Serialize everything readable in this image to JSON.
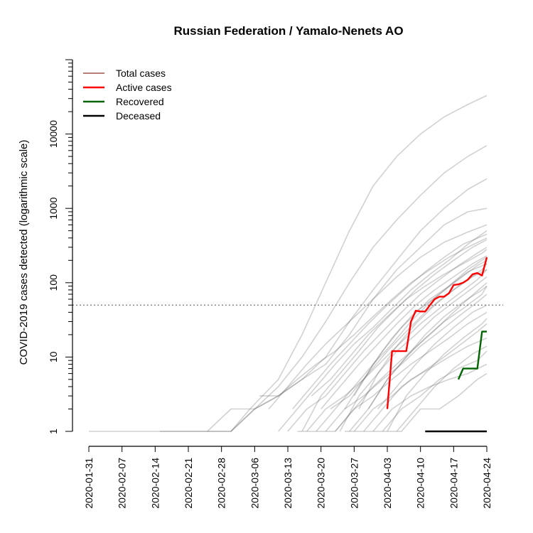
{
  "chart_data": {
    "type": "line",
    "title": "Russian Federation / Yamalo-Nenets AO",
    "ylabel": "COVID-2019 cases detected (logarithmic scale)",
    "xlabel": "",
    "y_scale": "log",
    "ylim": [
      1,
      100000
    ],
    "xlim": [
      "2020-01-31",
      "2020-04-24"
    ],
    "x_ticks": [
      "2020-01-31",
      "2020-02-07",
      "2020-02-14",
      "2020-02-21",
      "2020-02-28",
      "2020-03-06",
      "2020-03-13",
      "2020-03-20",
      "2020-03-27",
      "2020-04-03",
      "2020-04-10",
      "2020-04-17",
      "2020-04-24"
    ],
    "y_ticks": [
      1,
      10,
      100,
      1000,
      10000
    ],
    "y_tick_labels": [
      "1",
      "10",
      "100",
      "1000",
      "10000"
    ],
    "reference_line": 50,
    "grid": false,
    "legend_position": "top-left",
    "legend": [
      {
        "label": "Total cases",
        "color": "#a0524d"
      },
      {
        "label": "Active cases",
        "color": "#ff0000"
      },
      {
        "label": "Recovered",
        "color": "#006400"
      },
      {
        "label": "Deceased",
        "color": "#000000"
      }
    ],
    "series": [
      {
        "name": "Active cases",
        "color": "#ff0000",
        "x": [
          "2020-04-03",
          "2020-04-04",
          "2020-04-05",
          "2020-04-06",
          "2020-04-07",
          "2020-04-08",
          "2020-04-09",
          "2020-04-10",
          "2020-04-11",
          "2020-04-12",
          "2020-04-13",
          "2020-04-14",
          "2020-04-15",
          "2020-04-16",
          "2020-04-17",
          "2020-04-18",
          "2020-04-19",
          "2020-04-20",
          "2020-04-21",
          "2020-04-22",
          "2020-04-23",
          "2020-04-24"
        ],
        "y": [
          2,
          12,
          12,
          12,
          12,
          30,
          42,
          41,
          41,
          50,
          60,
          65,
          65,
          72,
          93,
          95,
          100,
          110,
          130,
          135,
          125,
          220
        ]
      },
      {
        "name": "Recovered",
        "color": "#006400",
        "x": [
          "2020-04-18",
          "2020-04-19",
          "2020-04-20",
          "2020-04-21",
          "2020-04-22",
          "2020-04-23",
          "2020-04-24"
        ],
        "y": [
          5,
          7,
          7,
          7,
          7,
          22,
          22
        ]
      },
      {
        "name": "Deceased",
        "color": "#000000",
        "x": [
          "2020-04-11",
          "2020-04-24"
        ],
        "y": [
          1,
          1
        ]
      }
    ],
    "background_series": [
      {
        "x": [
          0,
          5,
          10,
          20,
          25,
          30,
          34,
          40,
          45,
          50,
          55,
          60,
          65,
          70,
          75,
          80,
          84
        ],
        "y": [
          1,
          1,
          1,
          1,
          1,
          1,
          2,
          5,
          20,
          100,
          500,
          2000,
          5000,
          10000,
          17000,
          25000,
          33000
        ]
      },
      {
        "x": [
          15,
          20,
          25,
          30,
          35,
          40,
          45,
          50,
          55,
          60,
          65,
          70,
          75,
          80,
          84
        ],
        "y": [
          1,
          1,
          1,
          1,
          2,
          4,
          10,
          30,
          100,
          300,
          700,
          1500,
          3000,
          5000,
          7000
        ]
      },
      {
        "x": [
          30,
          35,
          40,
          45,
          50,
          55,
          60,
          65,
          70,
          75,
          80,
          84
        ],
        "y": [
          1,
          2,
          3,
          5,
          10,
          30,
          80,
          200,
          500,
          1000,
          1800,
          2500
        ]
      },
      {
        "x": [
          25,
          30,
          35,
          40,
          45,
          50,
          55,
          60,
          65,
          70,
          75,
          80,
          84
        ],
        "y": [
          1,
          2,
          2,
          3,
          5,
          8,
          20,
          60,
          150,
          300,
          600,
          900,
          1000
        ]
      },
      {
        "x": [
          38,
          42,
          46,
          50,
          55,
          60,
          65,
          70,
          75,
          80,
          84
        ],
        "y": [
          2,
          4,
          8,
          15,
          30,
          60,
          120,
          220,
          350,
          480,
          600
        ]
      },
      {
        "x": [
          40,
          44,
          48,
          52,
          56,
          60,
          64,
          68,
          72,
          76,
          80,
          84
        ],
        "y": [
          1,
          2,
          4,
          8,
          15,
          25,
          45,
          80,
          130,
          200,
          330,
          500
        ]
      },
      {
        "x": [
          42,
          46,
          50,
          54,
          58,
          62,
          66,
          70,
          74,
          78,
          82,
          84
        ],
        "y": [
          1,
          2,
          3,
          6,
          12,
          22,
          40,
          70,
          110,
          170,
          250,
          300
        ]
      },
      {
        "x": [
          44,
          48,
          52,
          56,
          60,
          64,
          68,
          72,
          76,
          80,
          84
        ],
        "y": [
          1,
          1,
          2,
          4,
          8,
          15,
          30,
          55,
          90,
          150,
          220
        ]
      },
      {
        "x": [
          46,
          50,
          54,
          58,
          62,
          66,
          70,
          74,
          78,
          82,
          84
        ],
        "y": [
          1,
          2,
          3,
          5,
          9,
          16,
          28,
          45,
          70,
          110,
          150
        ]
      },
      {
        "x": [
          48,
          52,
          56,
          60,
          64,
          68,
          72,
          76,
          80,
          84
        ],
        "y": [
          1,
          1,
          2,
          4,
          7,
          12,
          20,
          35,
          60,
          100
        ]
      },
      {
        "x": [
          50,
          54,
          58,
          62,
          66,
          70,
          74,
          78,
          82,
          84
        ],
        "y": [
          1,
          2,
          3,
          5,
          8,
          14,
          22,
          35,
          55,
          70
        ]
      },
      {
        "x": [
          52,
          56,
          60,
          64,
          68,
          72,
          76,
          80,
          84
        ],
        "y": [
          1,
          2,
          3,
          5,
          8,
          12,
          18,
          28,
          40
        ]
      },
      {
        "x": [
          54,
          58,
          62,
          66,
          70,
          74,
          78,
          82,
          84
        ],
        "y": [
          1,
          1,
          2,
          4,
          6,
          9,
          14,
          22,
          28
        ]
      },
      {
        "x": [
          56,
          60,
          64,
          68,
          72,
          76,
          80,
          84
        ],
        "y": [
          1,
          2,
          3,
          5,
          7,
          10,
          14,
          18
        ]
      },
      {
        "x": [
          58,
          62,
          66,
          70,
          74,
          78,
          82,
          84
        ],
        "y": [
          1,
          1,
          2,
          3,
          5,
          7,
          9,
          12
        ]
      },
      {
        "x": [
          60,
          64,
          68,
          72,
          76,
          80,
          84
        ],
        "y": [
          1,
          2,
          3,
          4,
          5,
          6,
          8
        ]
      },
      {
        "x": [
          62,
          66,
          70,
          74,
          78,
          82,
          84
        ],
        "y": [
          1,
          1,
          2,
          2,
          3,
          5,
          6
        ]
      },
      {
        "x": [
          47,
          51,
          55,
          59,
          63,
          67,
          71,
          75,
          79,
          83,
          84
        ],
        "y": [
          3,
          5,
          10,
          20,
          35,
          60,
          90,
          130,
          180,
          250,
          280
        ]
      },
      {
        "x": [
          49,
          53,
          57,
          61,
          65,
          69,
          73,
          77,
          81,
          84
        ],
        "y": [
          2,
          4,
          8,
          15,
          28,
          50,
          80,
          120,
          180,
          230
        ]
      },
      {
        "x": [
          51,
          55,
          59,
          63,
          67,
          71,
          75,
          79,
          83,
          84
        ],
        "y": [
          2,
          3,
          6,
          12,
          22,
          40,
          65,
          100,
          150,
          180
        ]
      },
      {
        "x": [
          53,
          57,
          61,
          65,
          69,
          73,
          77,
          81,
          84
        ],
        "y": [
          1,
          3,
          6,
          12,
          20,
          35,
          55,
          85,
          120
        ]
      },
      {
        "x": [
          55,
          59,
          63,
          67,
          71,
          75,
          79,
          83,
          84
        ],
        "y": [
          1,
          2,
          5,
          10,
          18,
          30,
          45,
          70,
          90
        ]
      },
      {
        "x": [
          45,
          49,
          53,
          57,
          61,
          65,
          69,
          73,
          77,
          81,
          84
        ],
        "y": [
          1,
          3,
          6,
          12,
          25,
          45,
          80,
          130,
          200,
          300,
          380
        ]
      },
      {
        "x": [
          43,
          47,
          51,
          55,
          59,
          63,
          67,
          71,
          75,
          79,
          84
        ],
        "y": [
          2,
          4,
          8,
          15,
          28,
          50,
          85,
          140,
          220,
          330,
          450
        ]
      },
      {
        "x": [
          36,
          40,
          44,
          48,
          52,
          56,
          60,
          64,
          68,
          72,
          76,
          80,
          84
        ],
        "y": [
          3,
          3,
          5,
          8,
          12,
          20,
          35,
          60,
          100,
          150,
          220,
          300,
          400
        ]
      },
      {
        "x": [
          54,
          58,
          62,
          66,
          70,
          74,
          78,
          82,
          84
        ],
        "y": [
          2,
          5,
          12,
          25,
          45,
          70,
          110,
          170,
          200
        ]
      },
      {
        "x": [
          56,
          60,
          64,
          68,
          72,
          76,
          80,
          84
        ],
        "y": [
          3,
          8,
          18,
          35,
          60,
          90,
          140,
          180
        ]
      },
      {
        "x": [
          57,
          61,
          65,
          69,
          73,
          77,
          81,
          84
        ],
        "y": [
          2,
          6,
          14,
          28,
          50,
          80,
          120,
          150
        ]
      },
      {
        "x": [
          59,
          63,
          67,
          71,
          75,
          79,
          83,
          84
        ],
        "y": [
          2,
          5,
          10,
          20,
          35,
          55,
          80,
          90
        ]
      },
      {
        "x": [
          61,
          65,
          69,
          73,
          77,
          81,
          84
        ],
        "y": [
          2,
          4,
          8,
          15,
          25,
          40,
          50
        ]
      },
      {
        "x": [
          63,
          67,
          71,
          75,
          79,
          83,
          84
        ],
        "y": [
          1,
          3,
          6,
          11,
          18,
          28,
          33
        ]
      },
      {
        "x": [
          65,
          69,
          73,
          77,
          81,
          84
        ],
        "y": [
          1,
          2,
          4,
          7,
          11,
          14
        ]
      }
    ]
  }
}
